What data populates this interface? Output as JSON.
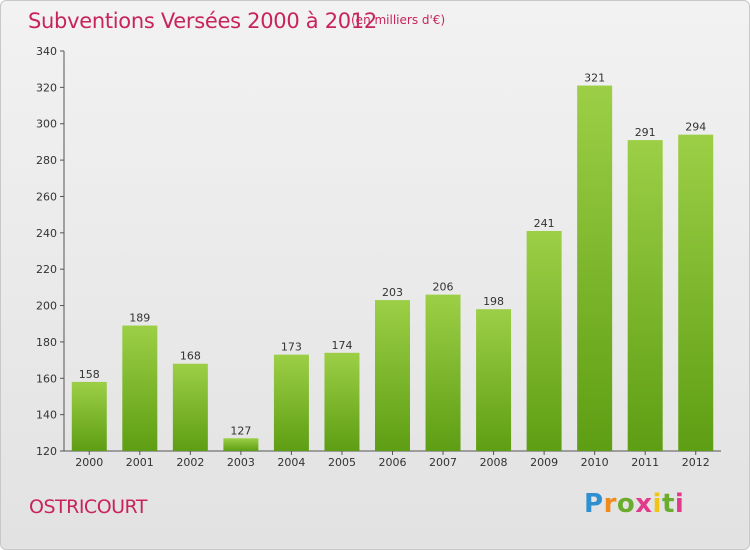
{
  "header": {
    "title": "Subventions Versées 2000 à 2012",
    "unit": "(en milliers d'€)"
  },
  "footer": {
    "commune": "OSTRICOURT",
    "logo": "Proxiti"
  },
  "colors": {
    "title": "#c8245a",
    "bar_top": "#9ccf46",
    "bar_bottom": "#5e9e14"
  },
  "chart_data": {
    "type": "bar",
    "title": "Subventions Versées 2000 à 2012",
    "subtitle": "(en milliers d'€)",
    "xlabel": "",
    "ylabel": "",
    "categories": [
      "2000",
      "2001",
      "2002",
      "2003",
      "2004",
      "2005",
      "2006",
      "2007",
      "2008",
      "2009",
      "2010",
      "2011",
      "2012"
    ],
    "values": [
      158,
      189,
      168,
      127,
      173,
      174,
      203,
      206,
      198,
      241,
      321,
      291,
      294
    ],
    "ylim": [
      120,
      340
    ],
    "yticks": [
      120,
      140,
      160,
      180,
      200,
      220,
      240,
      260,
      280,
      300,
      320,
      340
    ],
    "grid": false,
    "legend": "none"
  }
}
